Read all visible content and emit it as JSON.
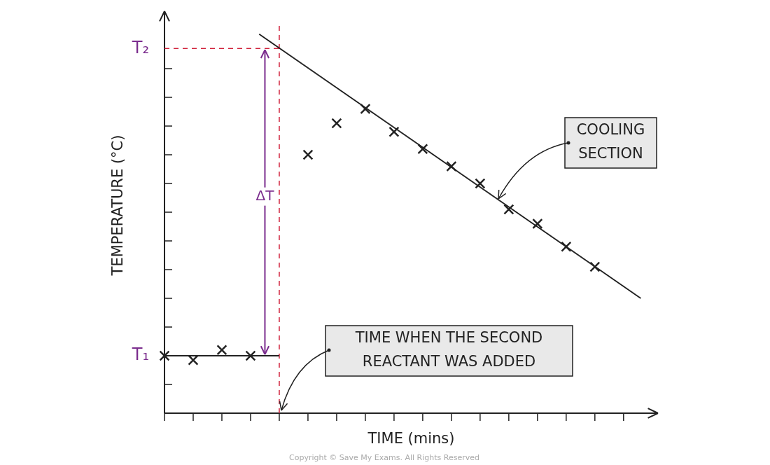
{
  "chart_data": {
    "type": "scatter",
    "x_label": "TIME (mins)",
    "y_label": "TEMPERATURE (°C)",
    "x": [
      0,
      1,
      2,
      3,
      5,
      6,
      7,
      8,
      9,
      10,
      11,
      12,
      13,
      14,
      15
    ],
    "values": [
      2,
      1.85,
      2.2,
      2,
      9,
      10.1,
      10.6,
      9.8,
      9.2,
      8.6,
      8,
      7.1,
      6.6,
      5.8,
      5.1
    ],
    "color": "#222222",
    "marker": "cross",
    "xlim": [
      0,
      17.2
    ],
    "ylim": [
      0,
      14
    ],
    "xticks": [
      0,
      1,
      2,
      3,
      4,
      5,
      6,
      7,
      8,
      9,
      10,
      11,
      12,
      13,
      14,
      15,
      16
    ],
    "yticks": [
      0,
      1,
      2,
      3,
      4,
      5,
      6,
      7,
      8,
      9,
      10,
      11,
      12
    ],
    "tick_labels": false,
    "grid": false,
    "lines": [
      {
        "x": [
          0,
          4
        ],
        "values": [
          2,
          2
        ],
        "color": "#222222",
        "line_style": "solid"
      },
      {
        "x": [
          3.3,
          16.6
        ],
        "values": [
          13.2,
          4
        ],
        "color": "#222222",
        "line_style": "solid"
      },
      {
        "x": [
          4,
          4
        ],
        "values": [
          0,
          13.5
        ],
        "color": "#d0203a",
        "line_style": "dashed"
      },
      {
        "x": [
          0,
          4
        ],
        "values": [
          12.7,
          12.7
        ],
        "color": "#d0203a",
        "line_style": "dashed"
      }
    ],
    "levels": [
      {
        "label": "T₁",
        "value": 2,
        "color": "#7b2d8e"
      },
      {
        "label": "T₂",
        "value": 12.7,
        "color": "#7b2d8e"
      }
    ],
    "difference": {
      "label": "ΔT",
      "x": 3.5,
      "from": 2,
      "to": 12.7,
      "color": "#7b2d8e"
    },
    "annotations": [
      {
        "text": [
          "COOLING",
          "SECTION"
        ]
      },
      {
        "text": [
          "TIME WHEN THE SECOND",
          "REACTANT WAS ADDED"
        ]
      }
    ],
    "footer": "Copyright © Save My Exams. All Rights Reserved"
  }
}
